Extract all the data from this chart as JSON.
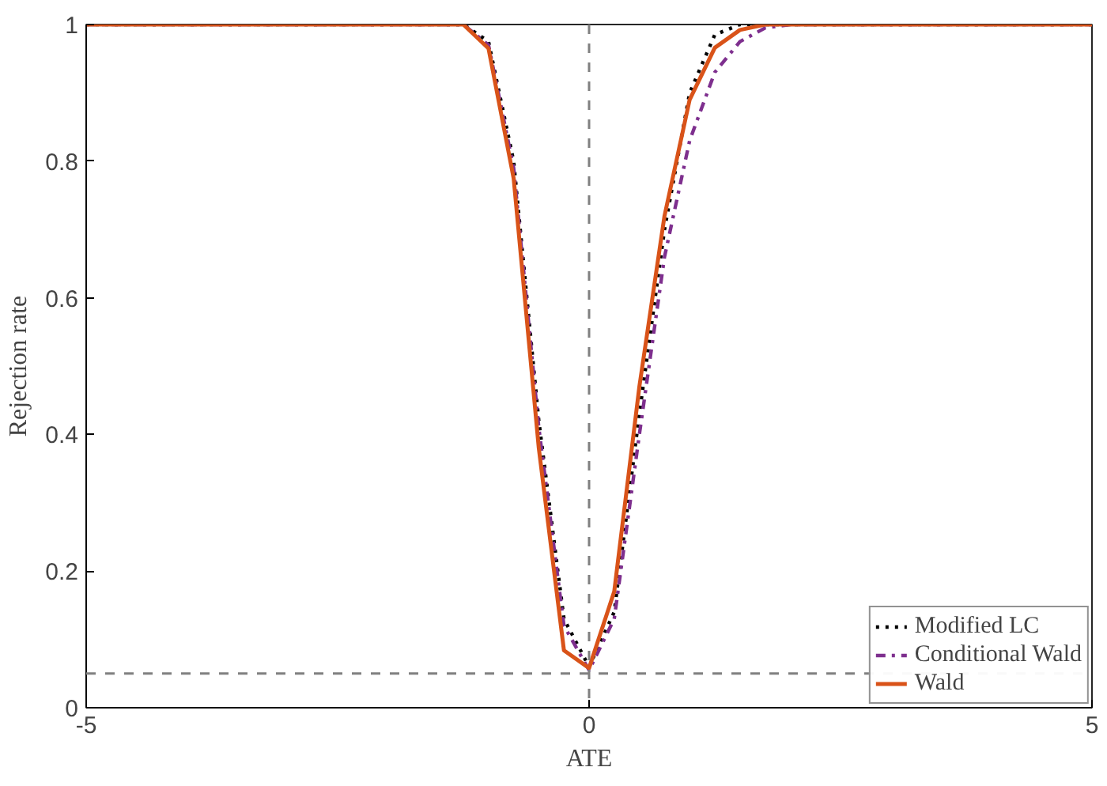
{
  "chart_data": {
    "type": "line",
    "xlabel": "ATE",
    "ylabel": "Rejection rate",
    "x": [
      -5,
      -1.25,
      -1,
      -0.75,
      -0.5,
      -0.25,
      0,
      0.25,
      0.5,
      0.75,
      1,
      1.25,
      1.5,
      1.75,
      2,
      5
    ],
    "series": [
      {
        "name": "Modified LC",
        "color": "#000000",
        "line_style": "dotted",
        "values": [
          1,
          1,
          0.975,
          0.8,
          0.42,
          0.13,
          0.06,
          0.14,
          0.43,
          0.7,
          0.9,
          0.985,
          1,
          1,
          1,
          1
        ]
      },
      {
        "name": "Conditional Wald",
        "color": "#7e2f8e",
        "line_style": "dashed",
        "values": [
          1,
          1,
          0.97,
          0.79,
          0.41,
          0.12,
          0.055,
          0.13,
          0.4,
          0.66,
          0.83,
          0.93,
          0.975,
          0.995,
          1,
          1
        ]
      },
      {
        "name": "Wald",
        "color": "#d95319",
        "line_style": "solid",
        "values": [
          1,
          1,
          0.965,
          0.775,
          0.38,
          0.084,
          0.058,
          0.17,
          0.47,
          0.72,
          0.89,
          0.966,
          0.992,
          1,
          1,
          1
        ]
      }
    ],
    "xlim": [
      -5,
      5
    ],
    "xticks": [
      -5,
      0,
      5
    ],
    "ylim": [
      0,
      1
    ],
    "yticks": [
      0,
      0.2,
      0.4,
      0.6,
      0.8,
      1
    ],
    "ref_lines": [
      {
        "axis": "y",
        "value": 0.05,
        "color": "#808080",
        "line_style": "dashed"
      },
      {
        "axis": "x",
        "value": 0,
        "color": "#808080",
        "line_style": "dashed"
      }
    ],
    "legend": "bottom right",
    "grid": false,
    "marker": "none"
  }
}
